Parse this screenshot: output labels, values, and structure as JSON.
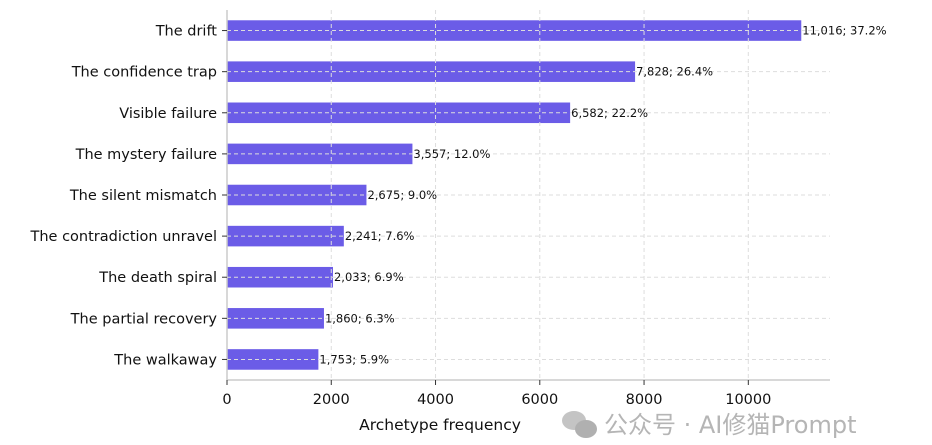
{
  "chart_data": {
    "type": "bar",
    "orientation": "horizontal",
    "categories": [
      "The drift",
      "The confidence trap",
      "Visible failure",
      "The mystery failure",
      "The silent mismatch",
      "The contradiction unravel",
      "The death spiral",
      "The partial recovery",
      "The walkaway"
    ],
    "values": [
      11016,
      7828,
      6582,
      3557,
      2675,
      2241,
      2033,
      1860,
      1753
    ],
    "data_labels": [
      "11,016; 37.2%",
      "7,828; 26.4%",
      "6,582; 22.2%",
      "3,557; 12.0%",
      "2,675; 9.0%",
      "2,241; 7.6%",
      "2,033; 6.9%",
      "1,860; 6.3%",
      "1,753; 5.9%"
    ],
    "xlabel": "Archetype frequency",
    "ylabel": "",
    "title": "",
    "xlim": [
      0,
      11567
    ],
    "xticks": [
      0,
      2000,
      4000,
      6000,
      8000,
      10000
    ],
    "xtick_labels": [
      "0",
      "2000",
      "4000",
      "6000",
      "8000",
      "10000"
    ],
    "grid": true,
    "bar_color": "#6b5ce7"
  },
  "watermark": "公众号 · AI修猫Prompt"
}
